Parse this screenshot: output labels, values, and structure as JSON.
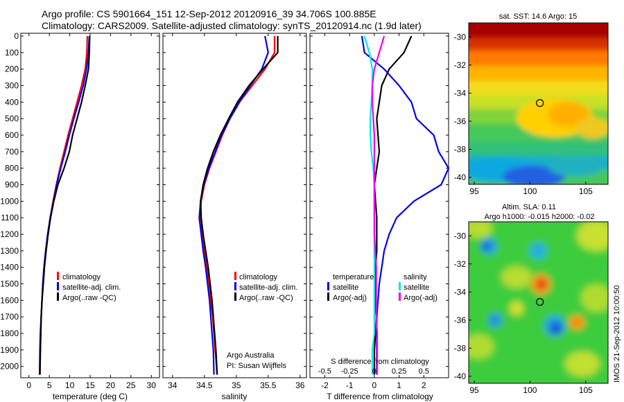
{
  "header": {
    "line1": "Argo profile: CS 5901664_151 12-Sep-2012 20120916_39 34.706S 100.885E",
    "line2": "Climatology: CARS2009. Satellite-adjusted climatology: synTS_20120914.nc (1.9d later)"
  },
  "colors": {
    "climatology": "#ff0000",
    "satellite": "#0000ee",
    "argo": "#000000",
    "satellite_s": "#00e8e8",
    "argo_s": "#ee00ee"
  },
  "depth_ticks": [
    "0",
    "100",
    "200",
    "300",
    "400",
    "500",
    "600",
    "700",
    "800",
    "900",
    "1000",
    "1100",
    "1200",
    "1300",
    "1400",
    "1500",
    "1600",
    "1700",
    "1800",
    "1900",
    "2000"
  ],
  "chart_data": [
    {
      "type": "line",
      "xlabel": "temperature (deg C)",
      "ylabel": "",
      "xlim": [
        -2,
        32
      ],
      "ylim": [
        2060,
        0
      ],
      "xticks": [
        "0",
        "5",
        "10",
        "15",
        "20",
        "25",
        "30"
      ],
      "legend": [
        "climatology",
        "satellite-adj. clim.",
        "Argo(..raw -QC)"
      ],
      "series": [
        {
          "name": "climatology",
          "x": [
            14.3,
            14.2,
            13.8,
            12.9,
            11.8,
            10.7,
            9.6,
            8.6,
            7.6,
            6.7,
            5.9,
            5.2,
            4.6,
            4.1,
            3.7,
            3.4,
            3.2,
            3.0,
            2.9,
            2.8,
            2.7
          ],
          "y": [
            0,
            100,
            200,
            300,
            400,
            500,
            600,
            700,
            800,
            900,
            1000,
            1100,
            1200,
            1300,
            1400,
            1500,
            1600,
            1700,
            1800,
            1900,
            2050
          ]
        },
        {
          "name": "satellite-adj. clim.",
          "x": [
            14.8,
            14.6,
            14.1,
            13.3,
            12.2,
            11.0,
            9.9,
            8.9,
            7.8,
            6.8,
            6.0,
            5.2,
            4.6,
            4.1,
            3.7,
            3.4,
            3.2,
            3.0,
            2.8,
            2.7,
            2.6
          ],
          "y": [
            0,
            100,
            200,
            300,
            400,
            500,
            600,
            700,
            800,
            900,
            1000,
            1100,
            1200,
            1300,
            1400,
            1500,
            1600,
            1700,
            1800,
            1900,
            2050
          ]
        },
        {
          "name": "Argo(..raw -QC)",
          "x": [
            14.9,
            14.8,
            14.6,
            13.8,
            12.9,
            11.8,
            10.7,
            9.9,
            8.6,
            7.1,
            6.1,
            5.3,
            4.7,
            4.2,
            3.8,
            3.5,
            3.2,
            3.0,
            2.9,
            2.8,
            2.7
          ],
          "y": [
            0,
            100,
            200,
            300,
            400,
            500,
            600,
            700,
            800,
            900,
            1000,
            1100,
            1200,
            1300,
            1400,
            1500,
            1600,
            1700,
            1800,
            1900,
            2050
          ]
        }
      ]
    },
    {
      "type": "line",
      "xlabel": "salinity",
      "ylabel": "",
      "xlim": [
        33.85,
        36.1
      ],
      "ylim": [
        2060,
        0
      ],
      "xticks": [
        "34",
        "34.5",
        "35",
        "35.5",
        "36"
      ],
      "legend": [
        "climatology",
        "satellite-adj. clim.",
        "Argo(..raw -QC)"
      ],
      "annotation": [
        "Argo Australia",
        "PI: Susan Wijffels"
      ],
      "series": [
        {
          "name": "climatology",
          "x": [
            35.6,
            35.6,
            35.45,
            35.25,
            35.05,
            34.9,
            34.78,
            34.68,
            34.58,
            34.5,
            34.45,
            34.43,
            34.46,
            34.5,
            34.54,
            34.57,
            34.6,
            34.63,
            34.65,
            34.67,
            34.7
          ],
          "y": [
            0,
            100,
            200,
            300,
            400,
            500,
            600,
            700,
            800,
            900,
            1000,
            1100,
            1200,
            1300,
            1400,
            1500,
            1600,
            1700,
            1800,
            1900,
            2050
          ]
        },
        {
          "name": "satellite-adj. clim.",
          "x": [
            35.45,
            35.5,
            35.4,
            35.22,
            35.05,
            34.9,
            34.77,
            34.67,
            34.57,
            34.49,
            34.44,
            34.42,
            34.45,
            34.48,
            34.52,
            34.55,
            34.58,
            34.6,
            34.62,
            34.64,
            34.65
          ],
          "y": [
            0,
            100,
            200,
            300,
            400,
            500,
            600,
            700,
            800,
            900,
            1000,
            1100,
            1200,
            1300,
            1400,
            1500,
            1600,
            1700,
            1800,
            1900,
            2050
          ]
        },
        {
          "name": "Argo(..raw -QC)",
          "x": [
            35.65,
            35.65,
            35.42,
            35.2,
            35.02,
            34.88,
            34.75,
            34.64,
            34.55,
            34.48,
            34.44,
            34.45,
            34.48,
            34.52,
            34.56,
            34.59,
            34.62,
            34.64,
            34.66,
            34.68,
            34.7
          ],
          "y": [
            0,
            100,
            200,
            300,
            400,
            500,
            600,
            700,
            800,
            900,
            1000,
            1100,
            1200,
            1300,
            1400,
            1500,
            1600,
            1700,
            1800,
            1900,
            2050
          ]
        }
      ]
    },
    {
      "type": "line",
      "xlabel": "T difference from climatology",
      "xlabel_top": "S difference from climatology",
      "ylabel": "",
      "xlim": [
        -2.6,
        3.0
      ],
      "ylim": [
        2060,
        0
      ],
      "xticks": [
        "-2",
        "-1",
        "0",
        "1",
        "2"
      ],
      "xticks_top": [
        "-0.5",
        "-0.25",
        "0",
        "0.25",
        "0.5"
      ],
      "legend_titles": [
        "temperature",
        "salinity"
      ],
      "legend": [
        "satellite",
        "Argo(-adj)",
        "satellite",
        "Argo(-adj)"
      ],
      "series": [
        {
          "name": "satellite",
          "quantity": "temperature",
          "x": [
            -0.5,
            -0.4,
            0.4,
            1.0,
            1.5,
            1.7,
            2.4,
            2.6,
            3.0,
            2.7,
            1.6,
            0.9,
            0.6,
            0.4,
            0.3,
            0.2,
            0.15,
            0.1,
            0.1,
            0.1,
            0.1
          ],
          "y": [
            0,
            100,
            200,
            300,
            400,
            500,
            600,
            700,
            800,
            900,
            1000,
            1100,
            1200,
            1300,
            1400,
            1500,
            1600,
            1700,
            1800,
            1900,
            2050
          ]
        },
        {
          "name": "Argo(-adj)",
          "quantity": "temperature",
          "x": [
            1.5,
            1.2,
            0.6,
            0.3,
            0.2,
            0.1,
            0.15,
            0.2,
            0.1,
            0.0,
            0.05,
            0.1,
            0.1,
            0.1,
            0.05,
            0.05,
            0.05,
            0.0,
            0.05,
            0.0,
            0.0
          ],
          "y": [
            0,
            100,
            200,
            300,
            400,
            500,
            600,
            700,
            800,
            900,
            1000,
            1100,
            1200,
            1300,
            1400,
            1500,
            1600,
            1700,
            1800,
            1900,
            2050
          ]
        },
        {
          "name": "satellite",
          "quantity": "salinity",
          "x": [
            -0.1,
            -0.05,
            -0.02,
            -0.02,
            -0.03,
            -0.04,
            -0.04,
            -0.03,
            -0.01,
            0.0,
            0.0,
            0.0,
            0.0,
            0.0,
            0.0,
            0.0,
            0.0,
            0.0,
            0.0,
            -0.02,
            -0.02
          ],
          "y": [
            0,
            100,
            200,
            300,
            400,
            500,
            600,
            700,
            800,
            900,
            1000,
            1100,
            1200,
            1300,
            1400,
            1500,
            1600,
            1700,
            1800,
            1900,
            2050
          ]
        },
        {
          "name": "Argo(-adj)",
          "quantity": "salinity",
          "x": [
            0.1,
            0.05,
            0.0,
            -0.02,
            -0.02,
            -0.01,
            0.0,
            0.0,
            0.0,
            0.0,
            0.0,
            0.0,
            0.0,
            0.01,
            0.02,
            0.02,
            0.02,
            0.02,
            0.03,
            0.03,
            0.03
          ],
          "y": [
            0,
            100,
            200,
            300,
            400,
            500,
            600,
            700,
            800,
            900,
            1000,
            1100,
            1200,
            1300,
            1400,
            1500,
            1600,
            1700,
            1800,
            1900,
            2050
          ]
        }
      ]
    },
    {
      "type": "heatmap",
      "title": "sat. SST: 14.6  Argo: 15",
      "xlim": [
        94.5,
        107
      ],
      "ylim": [
        -40.5,
        -29
      ],
      "xticks": [
        "95",
        "100",
        "105"
      ],
      "yticks": [
        "-30",
        "-32",
        "-34",
        "-36",
        "-38",
        "-40"
      ],
      "marker": {
        "lon": 100.885,
        "lat": -34.706
      }
    },
    {
      "type": "heatmap",
      "title": "Altim. SLA: 0.11",
      "subtitle": "Argo h1000: -0.015 h2000: -0.02",
      "xlim": [
        94.5,
        107
      ],
      "ylim": [
        -40.5,
        -29
      ],
      "xticks": [
        "95",
        "100",
        "105"
      ],
      "yticks": [
        "-30",
        "-32",
        "-34",
        "-36",
        "-38",
        "-40"
      ],
      "marker": {
        "lon": 100.885,
        "lat": -34.706
      }
    }
  ],
  "side_label": "IMOS 21-Sep-2012 10:00:50"
}
